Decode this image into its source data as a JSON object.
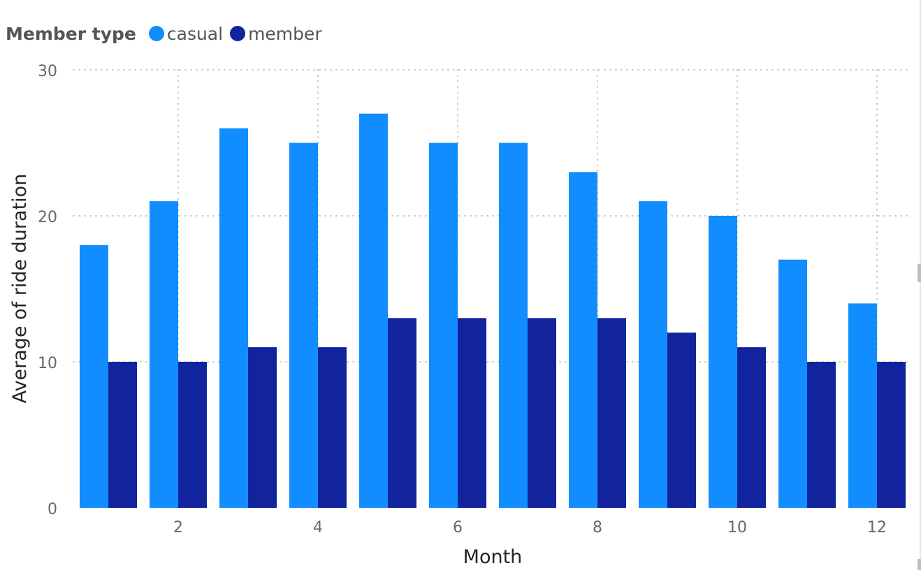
{
  "chart_data": {
    "type": "bar",
    "legend_title": "Member type",
    "x": [
      1,
      2,
      3,
      4,
      5,
      6,
      7,
      8,
      9,
      10,
      11,
      12
    ],
    "x_tick_labels": [
      "2",
      "4",
      "6",
      "8",
      "10",
      "12"
    ],
    "series": [
      {
        "name": "casual",
        "color": "#118dff",
        "values": [
          18,
          21,
          26,
          25,
          27,
          25,
          25,
          23,
          21,
          20,
          17,
          14
        ]
      },
      {
        "name": "member",
        "color": "#12239e",
        "values": [
          10,
          10,
          11,
          11,
          13,
          13,
          13,
          13,
          12,
          11,
          10,
          10
        ]
      }
    ],
    "xlabel": "Month",
    "ylabel": "Average of ride duration",
    "ylim": [
      0,
      30
    ],
    "y_ticks": [
      0,
      10,
      20,
      30
    ],
    "grid": true,
    "legend_position": "top-left"
  }
}
